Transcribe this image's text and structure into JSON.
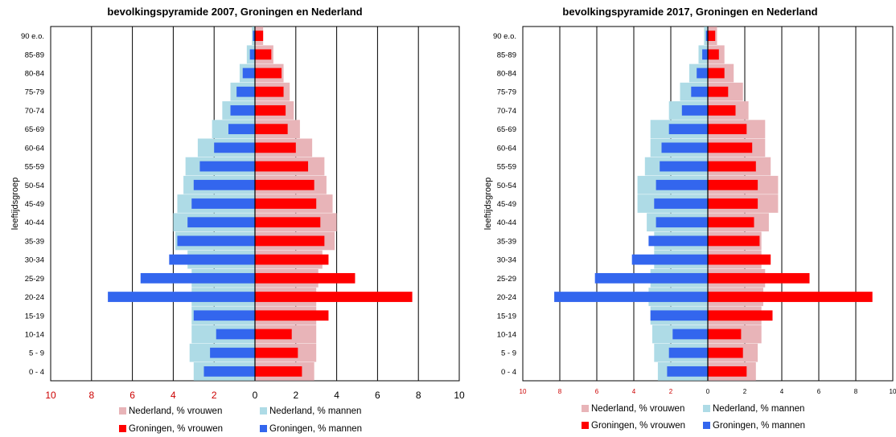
{
  "chart_data": [
    {
      "type": "bar",
      "title": "bevolkingspyramide 2007, Groningen en Nederland",
      "ylabel": "leeftijdsgroep",
      "categories": [
        "90 e.o.",
        "85-89",
        "80-84",
        "75-79",
        "70-74",
        "65-69",
        "60-64",
        "55-59",
        "50-54",
        "45-49",
        "40-44",
        "35-39",
        "30-34",
        "25-29",
        "20-24",
        "15-19",
        "10-14",
        "5 - 9",
        "0 - 4"
      ],
      "x_tick_labels": [
        "10",
        "8",
        "6",
        "4",
        "2",
        "0",
        "2",
        "4",
        "6",
        "8",
        "10"
      ],
      "xlim": [
        -10,
        10
      ],
      "grid": true,
      "series": [
        {
          "name": "Nederland, % vrouwen",
          "color": "#e8b4b8",
          "side": "right",
          "values": [
            0.4,
            0.9,
            1.4,
            1.7,
            1.9,
            2.2,
            2.8,
            3.4,
            3.5,
            3.8,
            4.0,
            3.9,
            3.3,
            3.1,
            3.0,
            3.0,
            3.0,
            3.0,
            2.9
          ]
        },
        {
          "name": "Nederland, % mannen",
          "color": "#aedbe6",
          "side": "left",
          "values": [
            0.15,
            0.4,
            0.75,
            1.2,
            1.6,
            2.1,
            2.8,
            3.4,
            3.5,
            3.8,
            4.0,
            3.9,
            3.3,
            3.1,
            3.1,
            3.1,
            3.1,
            3.2,
            3.0
          ]
        },
        {
          "name": "Groningen, % vrouwen",
          "color": "#ff0000",
          "side": "right",
          "values": [
            0.4,
            0.8,
            1.3,
            1.4,
            1.5,
            1.6,
            2.0,
            2.6,
            2.9,
            3.0,
            3.2,
            3.4,
            3.6,
            4.9,
            7.7,
            3.6,
            1.8,
            2.1,
            2.3
          ]
        },
        {
          "name": "Groningen, % mannen",
          "color": "#3366ee",
          "side": "left",
          "values": [
            0.1,
            0.25,
            0.6,
            0.9,
            1.2,
            1.3,
            2.0,
            2.7,
            3.0,
            3.1,
            3.3,
            3.8,
            4.2,
            5.6,
            7.2,
            3.0,
            1.9,
            2.2,
            2.5
          ]
        }
      ]
    },
    {
      "type": "bar",
      "title": "bevolkingspyramide 2017, Groningen en Nederland",
      "ylabel": "leeftijdsgroep",
      "categories": [
        "90 e.o.",
        "85-89",
        "80-84",
        "75-79",
        "70-74",
        "65-69",
        "60-64",
        "55-59",
        "50-54",
        "45-49",
        "40-44",
        "35-39",
        "30-34",
        "25-29",
        "20-24",
        "15-19",
        "10-14",
        "5 - 9",
        "0 - 4"
      ],
      "x_tick_labels": [
        "10",
        "8",
        "6",
        "4",
        "2",
        "0",
        "2",
        "4",
        "6",
        "8",
        "10"
      ],
      "xlim": [
        -10,
        10
      ],
      "grid": true,
      "series": [
        {
          "name": "Nederland, % vrouwen",
          "color": "#e8b4b8",
          "side": "right",
          "values": [
            0.5,
            0.9,
            1.4,
            1.9,
            2.2,
            3.1,
            3.1,
            3.4,
            3.8,
            3.8,
            3.3,
            2.9,
            2.9,
            3.1,
            3.0,
            2.9,
            2.9,
            2.7,
            2.6
          ]
        },
        {
          "name": "Nederland, % mannen",
          "color": "#aedbe6",
          "side": "left",
          "values": [
            0.2,
            0.5,
            1.0,
            1.5,
            2.1,
            3.1,
            3.1,
            3.4,
            3.8,
            3.8,
            3.3,
            2.9,
            2.9,
            3.1,
            3.2,
            3.1,
            3.0,
            2.9,
            2.7
          ]
        },
        {
          "name": "Groningen, % vrouwen",
          "color": "#ff0000",
          "side": "right",
          "values": [
            0.4,
            0.6,
            0.9,
            1.1,
            1.5,
            2.1,
            2.4,
            2.6,
            2.7,
            2.7,
            2.5,
            2.8,
            3.4,
            5.5,
            8.9,
            3.5,
            1.8,
            1.9,
            2.1
          ]
        },
        {
          "name": "Groningen, % mannen",
          "color": "#3366ee",
          "side": "left",
          "values": [
            0.1,
            0.3,
            0.6,
            0.9,
            1.4,
            2.1,
            2.5,
            2.6,
            2.8,
            2.9,
            2.8,
            3.2,
            4.1,
            6.1,
            8.3,
            3.1,
            1.9,
            2.1,
            2.2
          ]
        }
      ]
    }
  ]
}
